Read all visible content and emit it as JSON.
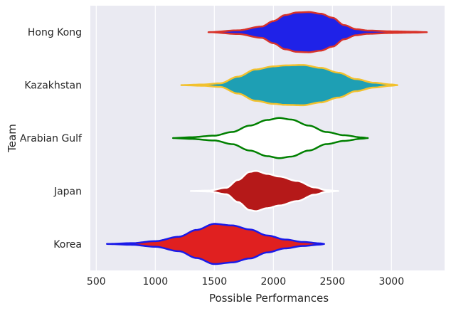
{
  "chart_data": {
    "type": "violin",
    "orientation": "horizontal",
    "xlabel": "Possible Performances",
    "ylabel": "Team",
    "xlim": [
      450,
      3450
    ],
    "xticks": [
      500,
      1000,
      1500,
      2000,
      2500,
      3000
    ],
    "grid": true,
    "background": "#EAEAF2",
    "categories": [
      "Hong Kong",
      "Kazakhstan",
      "Arabian Gulf",
      "Japan",
      "Korea"
    ],
    "series": [
      {
        "category": "Hong Kong",
        "fill": "#1F22E8",
        "edge": "#D8332A",
        "density": [
          [
            1450,
            0.0
          ],
          [
            1700,
            0.09
          ],
          [
            1900,
            0.28
          ],
          [
            2000,
            0.55
          ],
          [
            2100,
            0.85
          ],
          [
            2200,
            0.98
          ],
          [
            2300,
            1.0
          ],
          [
            2400,
            0.92
          ],
          [
            2500,
            0.72
          ],
          [
            2600,
            0.35
          ],
          [
            2700,
            0.15
          ],
          [
            2800,
            0.08
          ],
          [
            3000,
            0.04
          ],
          [
            3200,
            0.02
          ],
          [
            3300,
            0.0
          ]
        ]
      },
      {
        "category": "Kazakhstan",
        "fill": "#1E9FB4",
        "edge": "#F2C12E",
        "density": [
          [
            1220,
            0.0
          ],
          [
            1400,
            0.03
          ],
          [
            1550,
            0.09
          ],
          [
            1700,
            0.42
          ],
          [
            1850,
            0.78
          ],
          [
            2000,
            0.93
          ],
          [
            2100,
            0.98
          ],
          [
            2250,
            1.0
          ],
          [
            2400,
            0.86
          ],
          [
            2550,
            0.62
          ],
          [
            2700,
            0.3
          ],
          [
            2850,
            0.12
          ],
          [
            3000,
            0.03
          ],
          [
            3050,
            0.0
          ]
        ]
      },
      {
        "category": "Arabian Gulf",
        "fill": "#FFFFFF",
        "edge": "#008000",
        "density": [
          [
            1150,
            0.0
          ],
          [
            1300,
            0.04
          ],
          [
            1500,
            0.12
          ],
          [
            1650,
            0.3
          ],
          [
            1800,
            0.62
          ],
          [
            1950,
            0.9
          ],
          [
            2050,
            1.0
          ],
          [
            2150,
            0.92
          ],
          [
            2300,
            0.62
          ],
          [
            2450,
            0.3
          ],
          [
            2600,
            0.14
          ],
          [
            2750,
            0.03
          ],
          [
            2800,
            0.0
          ]
        ]
      },
      {
        "category": "Japan",
        "fill": "#B51919",
        "edge": "#FFFFFF",
        "density": [
          [
            1300,
            0.0
          ],
          [
            1450,
            0.02
          ],
          [
            1600,
            0.16
          ],
          [
            1700,
            0.55
          ],
          [
            1800,
            0.95
          ],
          [
            1850,
            1.0
          ],
          [
            1950,
            0.85
          ],
          [
            2050,
            0.72
          ],
          [
            2200,
            0.5
          ],
          [
            2350,
            0.18
          ],
          [
            2450,
            0.04
          ],
          [
            2550,
            0.0
          ]
        ]
      },
      {
        "category": "Korea",
        "fill": "#E02020",
        "edge": "#1A1AE8",
        "density": [
          [
            590,
            0.0
          ],
          [
            800,
            0.04
          ],
          [
            1000,
            0.14
          ],
          [
            1200,
            0.36
          ],
          [
            1350,
            0.7
          ],
          [
            1500,
            1.0
          ],
          [
            1650,
            0.92
          ],
          [
            1800,
            0.72
          ],
          [
            1950,
            0.42
          ],
          [
            2100,
            0.22
          ],
          [
            2250,
            0.1
          ],
          [
            2400,
            0.03
          ],
          [
            2430,
            0.0
          ]
        ]
      }
    ]
  }
}
